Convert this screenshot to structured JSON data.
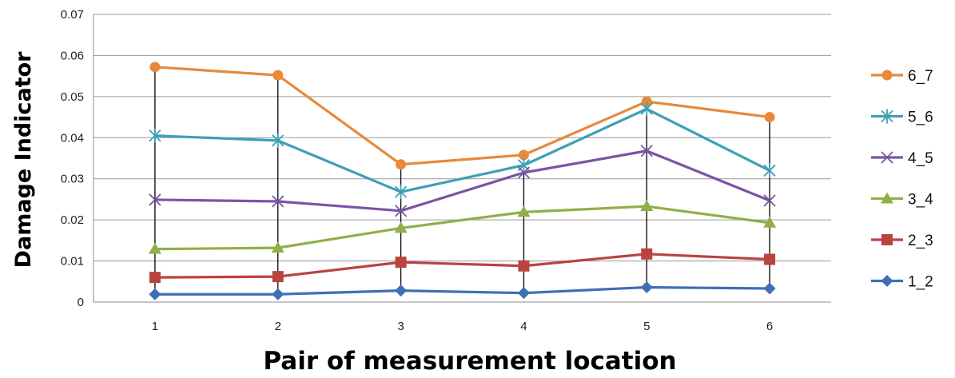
{
  "chart_data": {
    "type": "line",
    "xlabel": "Pair of measurement location",
    "ylabel": "Damage Indicator",
    "categories": [
      "1",
      "2",
      "3",
      "4",
      "5",
      "6"
    ],
    "ylim": [
      0,
      0.07
    ],
    "yticks": [
      "0",
      "0.01",
      "0.02",
      "0.03",
      "0.04",
      "0.05",
      "0.06",
      "0.07"
    ],
    "grid": true,
    "legend_position": "right",
    "series": [
      {
        "name": "6_7",
        "color": "#e8893a",
        "marker": "circle",
        "values": [
          0.0572,
          0.0552,
          0.0335,
          0.0358,
          0.0488,
          0.045
        ]
      },
      {
        "name": "5_6",
        "color": "#3e9fb5",
        "marker": "asterisk",
        "values": [
          0.0405,
          0.0393,
          0.0268,
          0.0333,
          0.047,
          0.032
        ]
      },
      {
        "name": "4_5",
        "color": "#7a55a3",
        "marker": "x",
        "values": [
          0.0249,
          0.0245,
          0.0222,
          0.0315,
          0.0368,
          0.0247
        ]
      },
      {
        "name": "3_4",
        "color": "#8fb049",
        "marker": "triangle",
        "values": [
          0.0129,
          0.0132,
          0.018,
          0.0219,
          0.0233,
          0.0193
        ]
      },
      {
        "name": "2_3",
        "color": "#b9443f",
        "marker": "square",
        "values": [
          0.006,
          0.0062,
          0.0097,
          0.0088,
          0.0117,
          0.0104
        ]
      },
      {
        "name": "1_2",
        "color": "#3e6fb5",
        "marker": "diamond",
        "values": [
          0.0019,
          0.0019,
          0.0028,
          0.0022,
          0.0036,
          0.0033
        ]
      }
    ]
  }
}
